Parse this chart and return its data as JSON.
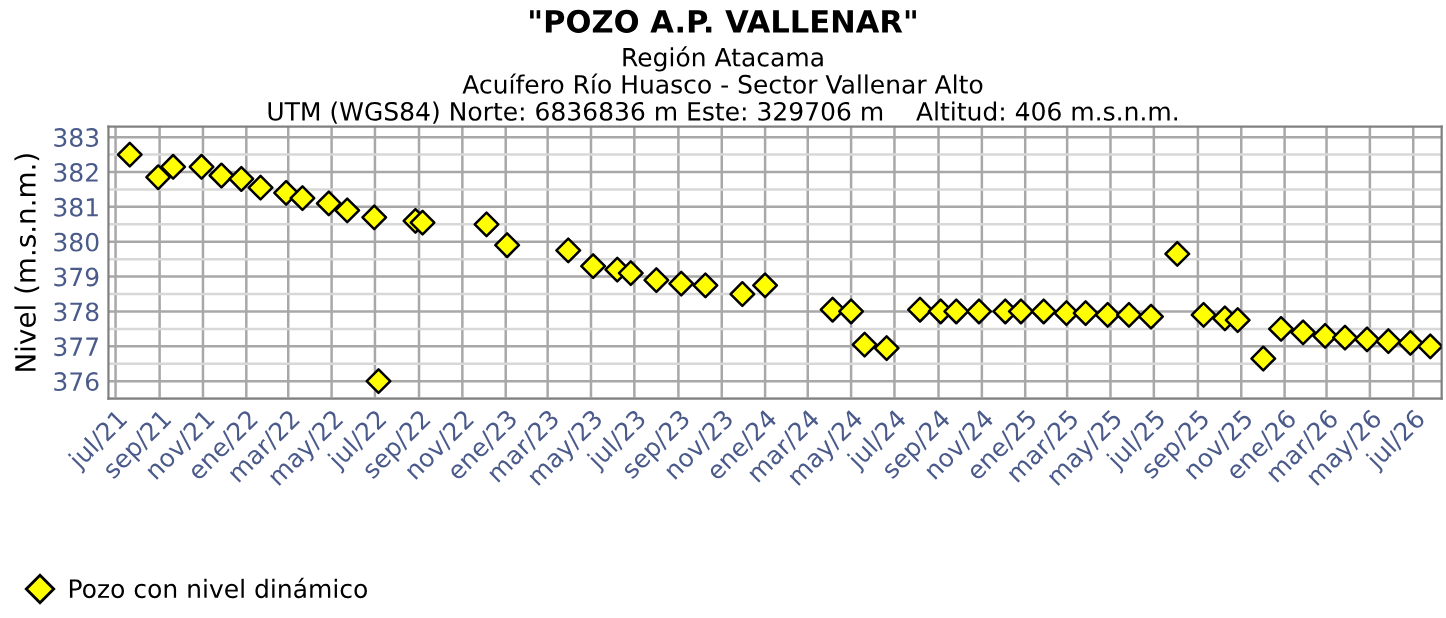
{
  "chart_data": {
    "type": "scatter",
    "title": "\"POZO A.P. VALLENAR\"",
    "subtitle": "Región Atacama\nAcuífero Río Huasco - Sector Vallenar Alto\nUTM (WGS84) Norte: 6836836 m Este: 329706 m    Altitud: 406 m.s.n.m.",
    "ylabel": "Nivel (m.s.n.m.)",
    "x": [
      "2021-07-21",
      "2021-08-30",
      "2021-09-20",
      "2021-10-30",
      "2021-11-27",
      "2021-12-25",
      "2022-01-21",
      "2022-02-26",
      "2022-03-21",
      "2022-04-27",
      "2022-05-23",
      "2022-06-30",
      "2022-07-06",
      "2022-08-27",
      "2022-09-06",
      "2022-12-05",
      "2023-01-03",
      "2023-03-30",
      "2023-05-04",
      "2023-06-07",
      "2023-06-26",
      "2023-08-01",
      "2023-09-05",
      "2023-10-09",
      "2023-11-30",
      "2024-01-01",
      "2024-04-05",
      "2024-05-01",
      "2024-05-20",
      "2024-06-20",
      "2024-08-06",
      "2024-09-04",
      "2024-09-26",
      "2024-10-28",
      "2024-12-04",
      "2024-12-26",
      "2025-01-27",
      "2025-02-28",
      "2025-03-27",
      "2025-04-27",
      "2025-05-27",
      "2025-06-27",
      "2025-08-03",
      "2025-09-09",
      "2025-10-09",
      "2025-10-27",
      "2025-12-02",
      "2025-12-27",
      "2026-01-27",
      "2026-02-27",
      "2026-03-27",
      "2026-04-27",
      "2026-05-27",
      "2026-06-27",
      "2026-07-25"
    ],
    "series": [
      {
        "name": "Pozo con nivel dinámico",
        "color": "#ffff00",
        "values": [
          382.5,
          381.85,
          382.15,
          382.15,
          381.9,
          381.8,
          381.55,
          381.4,
          381.25,
          381.1,
          380.9,
          380.7,
          376.0,
          380.6,
          380.55,
          380.5,
          379.9,
          379.75,
          379.3,
          379.2,
          379.1,
          378.9,
          378.8,
          378.75,
          378.5,
          378.75,
          378.05,
          378.0,
          377.05,
          376.95,
          378.05,
          378.0,
          378.0,
          378.0,
          378.0,
          378.0,
          378.0,
          377.95,
          377.95,
          377.9,
          377.9,
          377.85,
          379.65,
          377.9,
          377.8,
          377.75,
          376.65,
          377.5,
          377.4,
          377.3,
          377.25,
          377.2,
          377.15,
          377.1,
          377.0
        ]
      }
    ],
    "marker": "diamond",
    "grid": true,
    "legend": "bottom left",
    "xlim": [
      "2021-06-21",
      "2026-08-10"
    ],
    "xticks": [
      {
        "value": "2021-07-01",
        "label": "jul/21"
      },
      {
        "value": "2021-09-01",
        "label": "sep/21"
      },
      {
        "value": "2021-11-01",
        "label": "nov/21"
      },
      {
        "value": "2022-01-01",
        "label": "ene/22"
      },
      {
        "value": "2022-03-01",
        "label": "mar/22"
      },
      {
        "value": "2022-05-01",
        "label": "may/22"
      },
      {
        "value": "2022-07-01",
        "label": "jul/22"
      },
      {
        "value": "2022-09-01",
        "label": "sep/22"
      },
      {
        "value": "2022-11-01",
        "label": "nov/22"
      },
      {
        "value": "2023-01-01",
        "label": "ene/23"
      },
      {
        "value": "2023-03-01",
        "label": "mar/23"
      },
      {
        "value": "2023-05-01",
        "label": "may/23"
      },
      {
        "value": "2023-07-01",
        "label": "jul/23"
      },
      {
        "value": "2023-09-01",
        "label": "sep/23"
      },
      {
        "value": "2023-11-01",
        "label": "nov/23"
      },
      {
        "value": "2024-01-01",
        "label": "ene/24"
      },
      {
        "value": "2024-03-01",
        "label": "mar/24"
      },
      {
        "value": "2024-05-01",
        "label": "may/24"
      },
      {
        "value": "2024-07-01",
        "label": "jul/24"
      },
      {
        "value": "2024-09-01",
        "label": "sep/24"
      },
      {
        "value": "2024-11-01",
        "label": "nov/24"
      },
      {
        "value": "2025-01-01",
        "label": "ene/25"
      },
      {
        "value": "2025-03-01",
        "label": "mar/25"
      },
      {
        "value": "2025-05-01",
        "label": "may/25"
      },
      {
        "value": "2025-07-01",
        "label": "jul/25"
      },
      {
        "value": "2025-09-01",
        "label": "sep/25"
      },
      {
        "value": "2025-11-01",
        "label": "nov/25"
      },
      {
        "value": "2026-01-01",
        "label": "ene/26"
      },
      {
        "value": "2026-03-01",
        "label": "mar/26"
      },
      {
        "value": "2026-05-01",
        "label": "may/26"
      },
      {
        "value": "2026-07-01",
        "label": "jul/26"
      }
    ],
    "ylim": [
      375.5,
      383.3
    ],
    "yticks": [
      376,
      377,
      378,
      379,
      380,
      381,
      382,
      383
    ]
  }
}
